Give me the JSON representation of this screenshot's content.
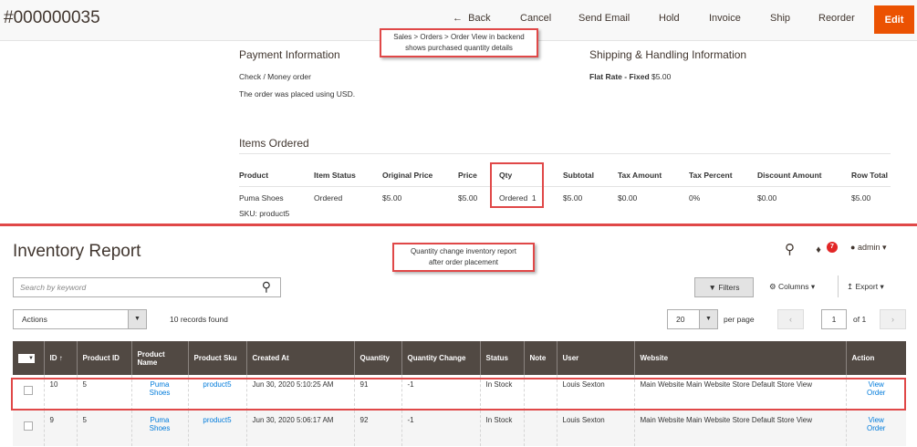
{
  "order": {
    "number": "#000000035",
    "toolbar": [
      "Back",
      "Cancel",
      "Send Email",
      "Hold",
      "Invoice",
      "Ship",
      "Reorder"
    ],
    "edit_label": "Edit",
    "callout": [
      "Sales > Orders > Order View in backend",
      "shows purchased quantity details"
    ],
    "payment": {
      "title": "Payment Information",
      "method": "Check / Money order",
      "note": "The order was placed using USD."
    },
    "shipping": {
      "title": "Shipping & Handling Information",
      "method": "Flat Rate - Fixed",
      "price": "$5.00"
    },
    "items": {
      "title": "Items Ordered",
      "headers": [
        "Product",
        "Item Status",
        "Original Price",
        "Price",
        "Qty",
        "Subtotal",
        "Tax Amount",
        "Tax Percent",
        "Discount Amount",
        "Row Total"
      ],
      "row": [
        "Puma Shoes",
        "Ordered",
        "$5.00",
        "$5.00",
        "Ordered  1",
        "$5.00",
        "$0.00",
        "0%",
        "$0.00",
        "$5.00"
      ],
      "sku": "SKU: product5"
    }
  },
  "report": {
    "title": "Inventory Report",
    "callout": [
      "Quantity change inventory report",
      "after order placement"
    ],
    "notification_count": "7",
    "user": "admin",
    "search_placeholder": "Search by keyword",
    "filters": "Filters",
    "columns": "Columns",
    "export": "Export",
    "actions": "Actions",
    "records": "10 records found",
    "per_page_value": "20",
    "per_page_label": "per page",
    "page": "1",
    "of_pages": "of 1",
    "headers": [
      "ID",
      "Product ID",
      "Product Name",
      "Product Sku",
      "Created At",
      "Quantity",
      "Quantity Change",
      "Status",
      "Note",
      "User",
      "Website",
      "Action"
    ],
    "rows": [
      {
        "id": "10",
        "product_id": "5",
        "name": "Puma Shoes",
        "sku": "product5",
        "created": "Jun 30, 2020 5:10:25 AM",
        "qty": "91",
        "change": "-1",
        "status": "In Stock",
        "note": "",
        "user": "Louis Sexton",
        "website": "Main Website Main Website Store Default Store View",
        "action": "View Order"
      },
      {
        "id": "9",
        "product_id": "5",
        "name": "Puma Shoes",
        "sku": "product5",
        "created": "Jun 30, 2020 5:06:17 AM",
        "qty": "92",
        "change": "-1",
        "status": "In Stock",
        "note": "",
        "user": "Louis Sexton",
        "website": "Main Website Main Website Store Default Store View",
        "action": "View Order"
      }
    ]
  },
  "colors": {
    "accent": "#eb5202",
    "header_bg": "#514943",
    "annotation": "#e04848",
    "link": "#007bdb"
  }
}
